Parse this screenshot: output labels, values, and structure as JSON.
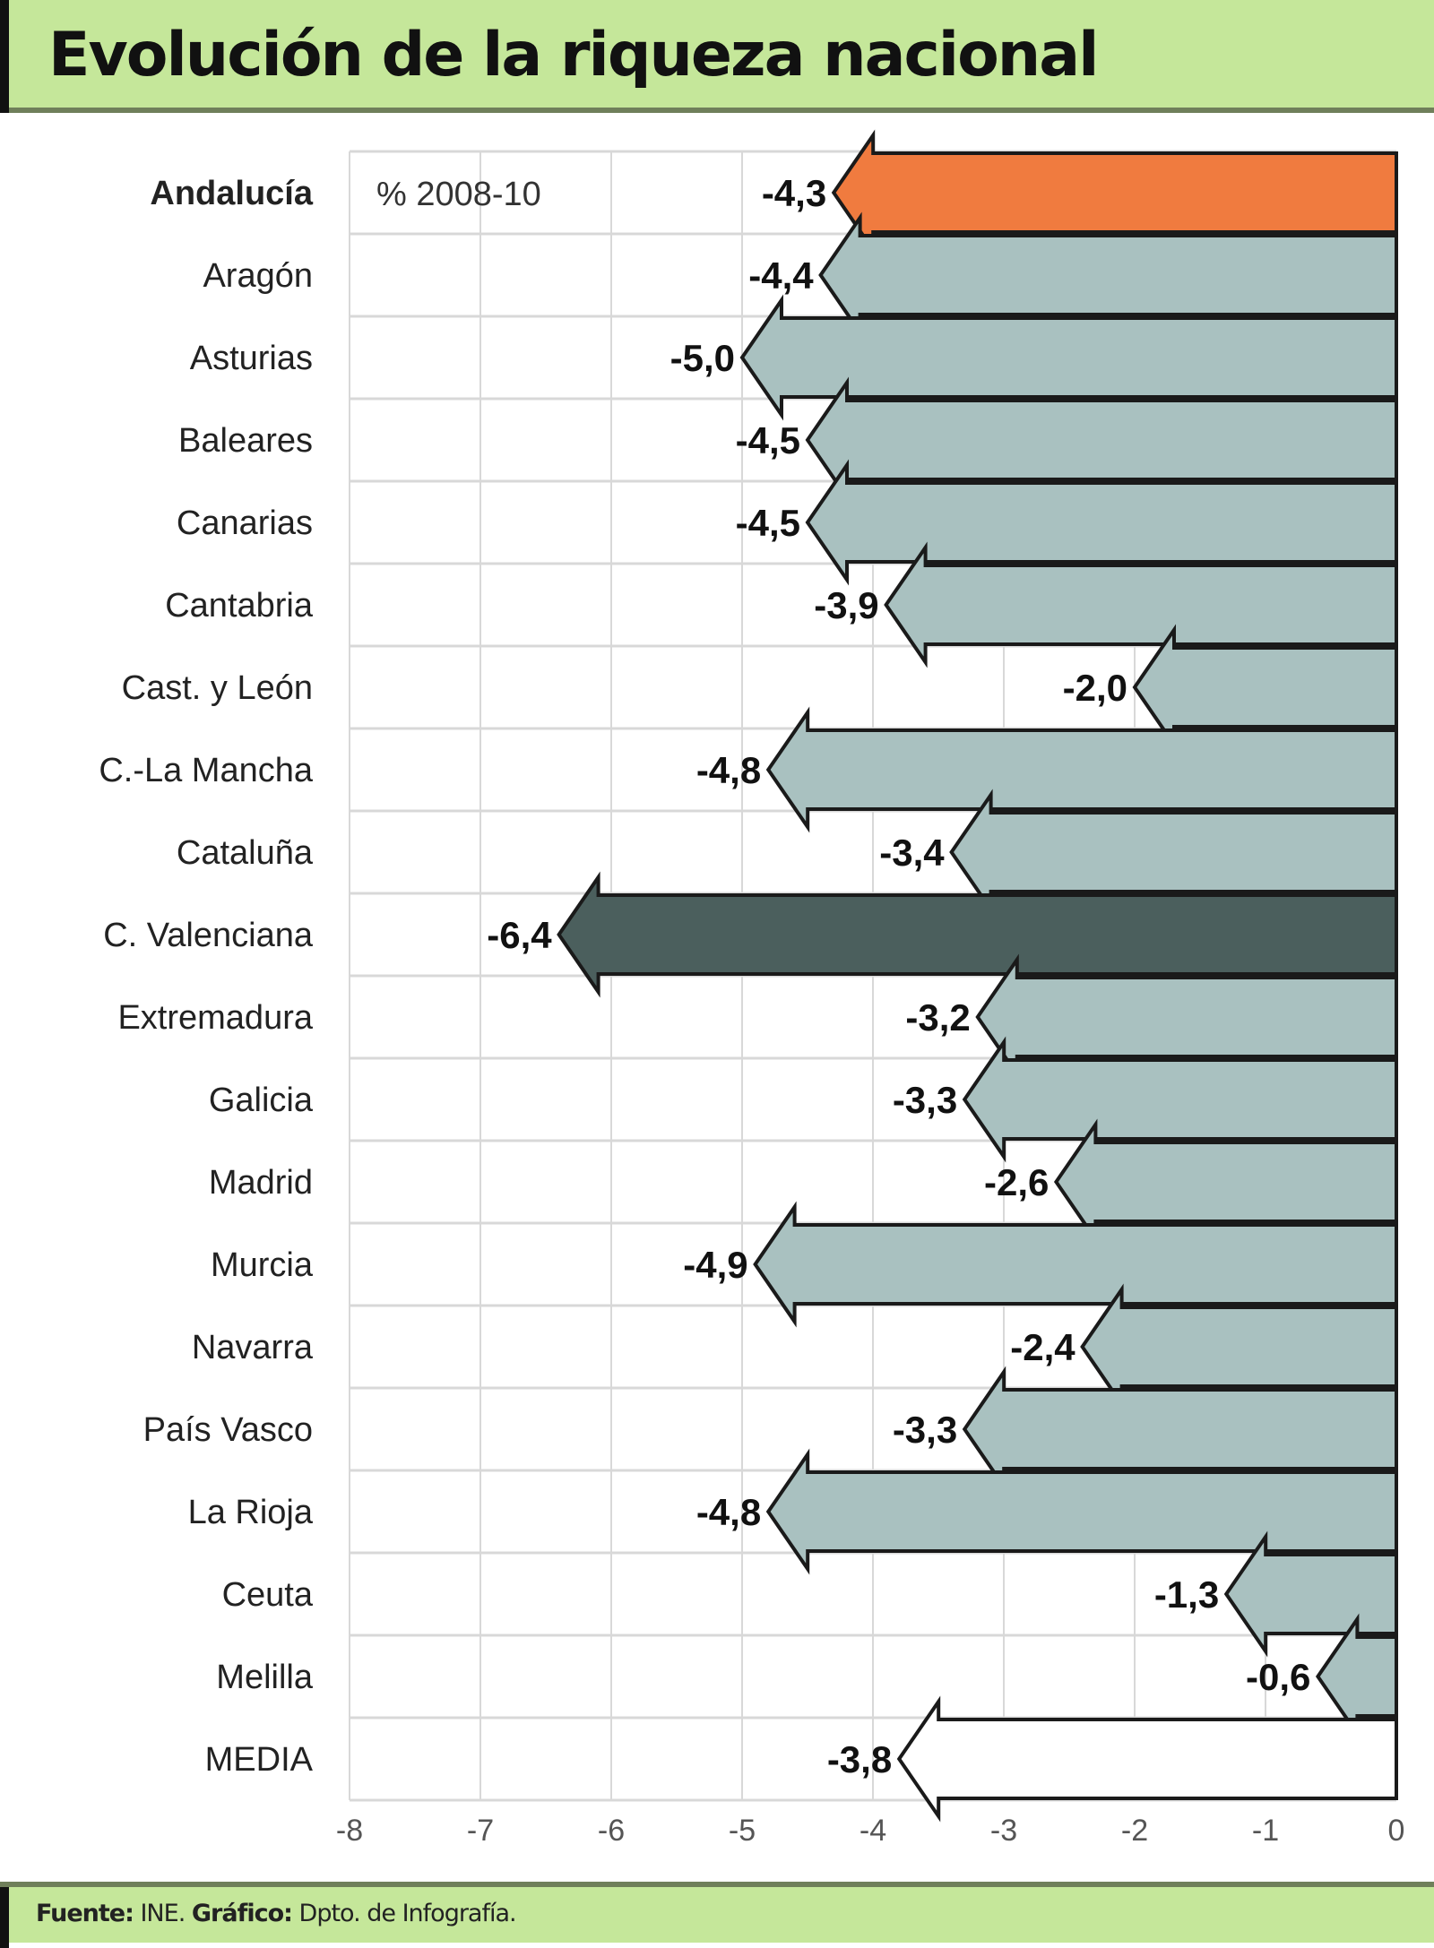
{
  "title": "Evolución de la riqueza nacional",
  "footer": {
    "source_label": "Fuente:",
    "source": "INE.",
    "graphic_label": "Gráfico:",
    "graphic": "Dpto. de Infografía."
  },
  "chart_data": {
    "type": "bar",
    "orientation": "horizontal",
    "title": "Evolución de la riqueza nacional",
    "unit_label": "% 2008-10",
    "xlim": [
      -8,
      0
    ],
    "x_ticks": [
      "-8",
      "-7",
      "-6",
      "-5",
      "-4",
      "-3",
      "-2",
      "-1",
      "0"
    ],
    "grid": true,
    "categories": [
      "Andalucía",
      "Aragón",
      "Asturias",
      "Baleares",
      "Canarias",
      "Cantabria",
      "Cast. y León",
      "C.-La Mancha",
      "Cataluña",
      "C. Valenciana",
      "Extremadura",
      "Galicia",
      "Madrid",
      "Murcia",
      "Navarra",
      "País Vasco",
      "La Rioja",
      "Ceuta",
      "Melilla",
      "MEDIA"
    ],
    "values": [
      -4.3,
      -4.4,
      -5.0,
      -4.5,
      -4.5,
      -3.9,
      -2.0,
      -4.8,
      -3.4,
      -6.4,
      -3.2,
      -3.3,
      -2.6,
      -4.9,
      -2.4,
      -3.3,
      -4.8,
      -1.3,
      -0.6,
      -3.8
    ],
    "value_labels": [
      "-4,3",
      "-4,4",
      "-5,0",
      "-4,5",
      "-4,5",
      "-3,9",
      "-2,0",
      "-4,8",
      "-3,4",
      "-6,4",
      "-3,2",
      "-3,3",
      "-2,6",
      "-4,9",
      "-2,4",
      "-3,3",
      "-4,8",
      "-1,3",
      "-0,6",
      "-3,8"
    ],
    "highlight": {
      "Andalucía": "#f07b3f",
      "C. Valenciana": "#4b5f5d",
      "MEDIA": "#ffffff"
    },
    "bar_color": "#a9c1c0",
    "bold_categories": [
      "Andalucía"
    ]
  }
}
